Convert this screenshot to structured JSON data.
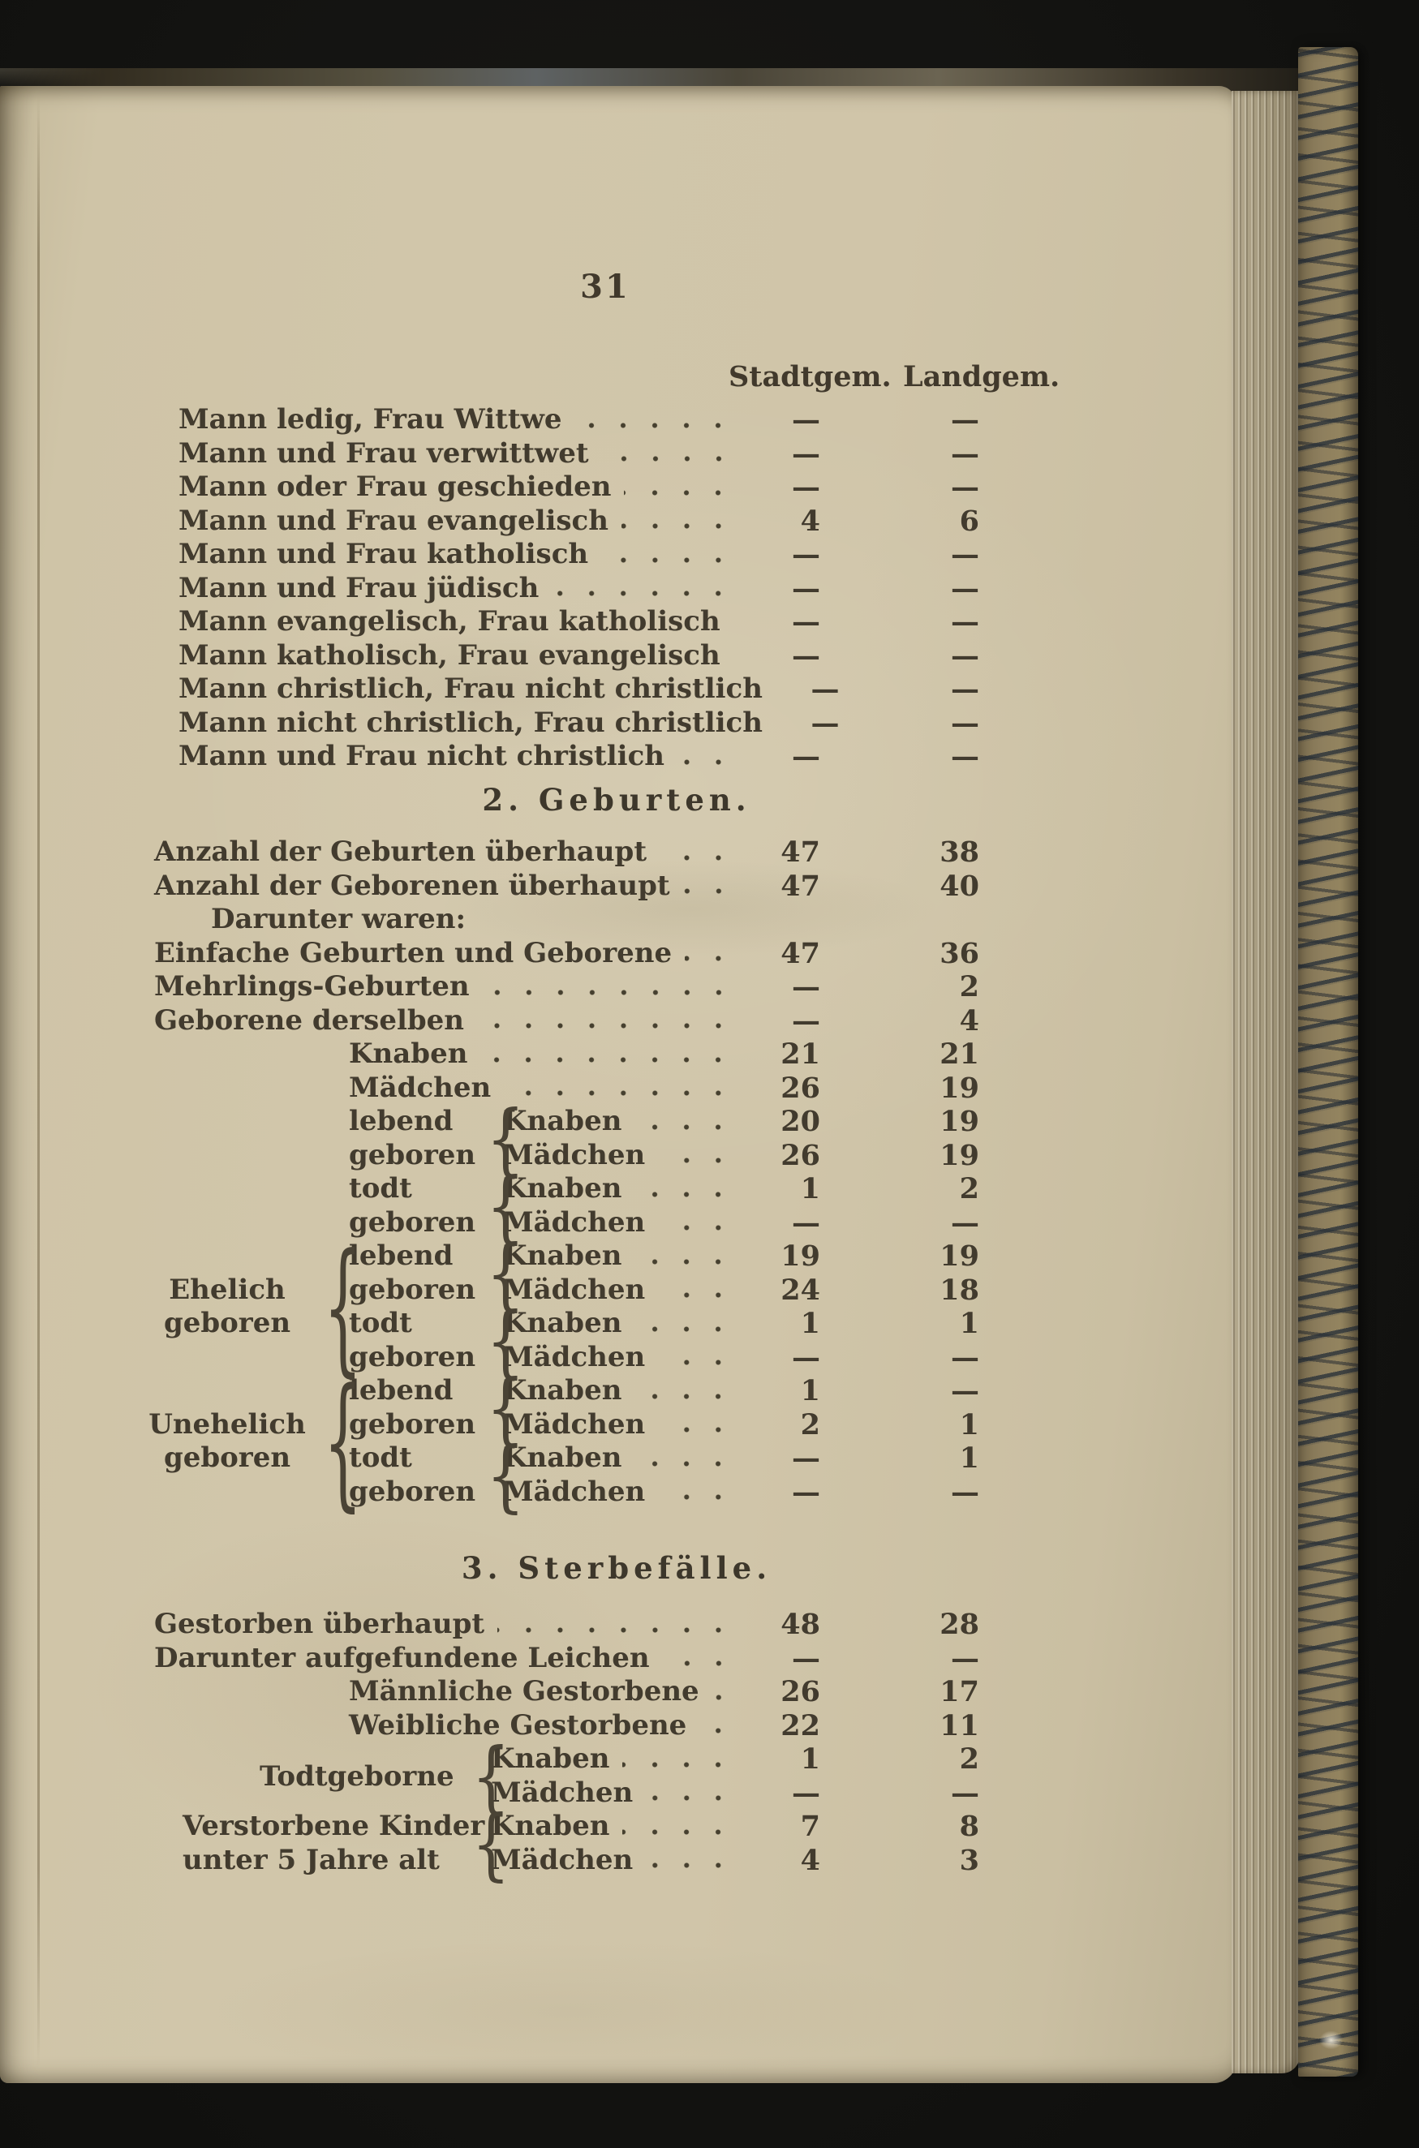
{
  "page": {
    "number": "31",
    "col_headers": [
      "Stadtgem.",
      "Landgem."
    ]
  },
  "glyphs": {
    "brace": "{"
  },
  "marriages": {
    "rows": [
      {
        "label": "Mann ledig, Frau Wittwe",
        "stadt": "—",
        "land": "—",
        "cls": "ind-marriage"
      },
      {
        "label": "Mann und Frau verwittwet",
        "stadt": "—",
        "land": "—",
        "cls": "ind-marriage"
      },
      {
        "label": "Mann oder Frau geschieden",
        "stadt": "—",
        "land": "—",
        "cls": "ind-marriage"
      },
      {
        "label": "Mann und Frau evangelisch",
        "stadt": "4",
        "land": "6",
        "cls": "ind-marriage"
      },
      {
        "label": "Mann und Frau katholisch",
        "stadt": "—",
        "land": "—",
        "cls": "ind-marriage"
      },
      {
        "label": "Mann und Frau jüdisch",
        "stadt": "—",
        "land": "—",
        "cls": "ind-marriage"
      },
      {
        "label": "Mann evangelisch, Frau katholisch",
        "stadt": "—",
        "land": "—",
        "cls": "ind-marriage"
      },
      {
        "label": "Mann katholisch, Frau evangelisch",
        "stadt": "—",
        "land": "—",
        "cls": "ind-marriage"
      },
      {
        "label": "Mann christlich, Frau nicht christlich",
        "stadt": "—",
        "land": "—",
        "cls": "ind-marriage"
      },
      {
        "label": "Mann nicht christlich, Frau christlich",
        "stadt": "—",
        "land": "—",
        "cls": "ind-marriage"
      },
      {
        "label": "Mann und Frau nicht christlich",
        "stadt": "—",
        "land": "—",
        "cls": "ind-marriage"
      }
    ]
  },
  "births": {
    "heading": "2. Geburten.",
    "rows": [
      {
        "label": "Anzahl der Geburten überhaupt",
        "stadt": "47",
        "land": "38",
        "cls": "ind-0"
      },
      {
        "label": "Anzahl der Geborenen überhaupt",
        "stadt": "47",
        "land": "40",
        "cls": "ind-0"
      },
      {
        "label": "Darunter waren:",
        "stadt": "",
        "land": "",
        "cls": "ind-1 nodots"
      },
      {
        "label": "Einfache Geburten und Geborene",
        "stadt": "47",
        "land": "36",
        "cls": "ind-0"
      },
      {
        "label": "Mehrlings-Geburten",
        "stadt": "—",
        "land": "2",
        "cls": "ind-0"
      },
      {
        "label": "Geborene derselben",
        "stadt": "—",
        "land": "4",
        "cls": "ind-0"
      },
      {
        "label": "Knaben",
        "stadt": "21",
        "land": "21",
        "cls": "ind-2"
      },
      {
        "label": "Mädchen",
        "stadt": "26",
        "land": "19",
        "cls": "ind-2"
      },
      {
        "label": "Knaben",
        "stadt": "20",
        "land": "19",
        "cls": "ind-3"
      },
      {
        "label": "Mädchen",
        "stadt": "26",
        "land": "19",
        "cls": "ind-3"
      },
      {
        "label": "Knaben",
        "stadt": "1",
        "land": "2",
        "cls": "ind-3"
      },
      {
        "label": "Mädchen",
        "stadt": "—",
        "land": "—",
        "cls": "ind-3"
      },
      {
        "label": "Knaben",
        "stadt": "19",
        "land": "19",
        "cls": "ind-3"
      },
      {
        "label": "Mädchen",
        "stadt": "24",
        "land": "18",
        "cls": "ind-3"
      },
      {
        "label": "Knaben",
        "stadt": "1",
        "land": "1",
        "cls": "ind-3"
      },
      {
        "label": "Mädchen",
        "stadt": "—",
        "land": "—",
        "cls": "ind-3"
      },
      {
        "label": "Knaben",
        "stadt": "1",
        "land": "—",
        "cls": "ind-3"
      },
      {
        "label": "Mädchen",
        "stadt": "2",
        "land": "1",
        "cls": "ind-3"
      },
      {
        "label": "Knaben",
        "stadt": "—",
        "land": "1",
        "cls": "ind-3"
      },
      {
        "label": "Mädchen",
        "stadt": "—",
        "land": "—",
        "cls": "ind-3"
      }
    ],
    "groups": {
      "g1": {
        "line1": "lebend",
        "line2": "geboren"
      },
      "g2": {
        "line1": "todt",
        "line2": "geboren"
      },
      "g3": {
        "line1": "lebend",
        "line2": "geboren"
      },
      "g4": {
        "line1": "todt",
        "line2": "geboren"
      },
      "g5": {
        "line1": "lebend",
        "line2": "geboren"
      },
      "g6": {
        "line1": "todt",
        "line2": "geboren"
      },
      "ehelich": {
        "line1": "Ehelich",
        "line2": "geboren"
      },
      "unehelich": {
        "line1": "Unehelich",
        "line2": "geboren"
      }
    }
  },
  "deaths": {
    "heading": "3. Sterbefälle.",
    "rows": [
      {
        "label": "Gestorben überhaupt",
        "stadt": "48",
        "land": "28",
        "cls": "ind-0"
      },
      {
        "label": "Darunter aufgefundene Leichen",
        "stadt": "—",
        "land": "—",
        "cls": "ind-0"
      },
      {
        "label": "Männliche Gestorbene",
        "stadt": "26",
        "land": "17",
        "cls": "ind-2"
      },
      {
        "label": "Weibliche Gestorbene",
        "stadt": "22",
        "land": "11",
        "cls": "ind-2"
      },
      {
        "label": "Knaben",
        "stadt": "1",
        "land": "2",
        "cls": "ind-3d"
      },
      {
        "label": "Mädchen",
        "stadt": "—",
        "land": "—",
        "cls": "ind-3d"
      },
      {
        "label": "Knaben",
        "stadt": "7",
        "land": "8",
        "cls": "ind-3d"
      },
      {
        "label": "Mädchen",
        "stadt": "4",
        "land": "3",
        "cls": "ind-3d"
      }
    ],
    "groups": {
      "todtgeborne": {
        "label": "Todtgeborne"
      },
      "verstorbene": {
        "line1": "Verstorbene Kinder",
        "line2": "unter 5 Jahre alt"
      }
    }
  }
}
